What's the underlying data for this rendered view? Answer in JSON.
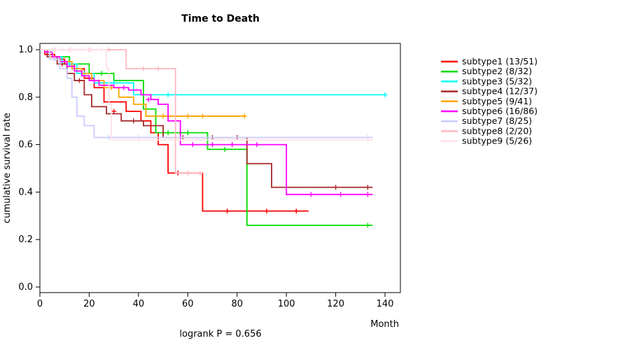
{
  "title": "Time to Death",
  "chart_data": {
    "type": "line",
    "subtype": "kaplan-meier-step",
    "title": "Time to Death",
    "xlabel": "Month",
    "ylabel": "cumulative survival rate",
    "annotation": "logrank P = 0.656",
    "xlim": [
      0,
      146
    ],
    "ylim": [
      0.0,
      1.0
    ],
    "xticks": [
      0,
      20,
      40,
      60,
      80,
      100,
      120,
      140
    ],
    "yticks": [
      0.0,
      0.2,
      0.4,
      0.6,
      0.8,
      1.0
    ],
    "grid": false,
    "legend_position": "right",
    "series": [
      {
        "name": "subtype1 (13/51)",
        "color": "#FF0000",
        "steps": [
          [
            0,
            1.0
          ],
          [
            2,
            0.98
          ],
          [
            6,
            0.96
          ],
          [
            10,
            0.94
          ],
          [
            14,
            0.92
          ],
          [
            18,
            0.88
          ],
          [
            22,
            0.84
          ],
          [
            26,
            0.78
          ],
          [
            35,
            0.74
          ],
          [
            41,
            0.7
          ],
          [
            45,
            0.65
          ],
          [
            48,
            0.6
          ],
          [
            52,
            0.48
          ],
          [
            66,
            0.32
          ]
        ],
        "end": 109,
        "censors": [
          [
            9,
            0.94
          ],
          [
            30,
            0.74
          ],
          [
            56,
            0.48
          ],
          [
            76,
            0.32
          ],
          [
            92,
            0.32
          ],
          [
            104,
            0.32
          ]
        ]
      },
      {
        "name": "subtype2 (8/32)",
        "color": "#00DD00",
        "steps": [
          [
            0,
            1.0
          ],
          [
            5,
            0.97
          ],
          [
            12,
            0.94
          ],
          [
            20,
            0.9
          ],
          [
            30,
            0.87
          ],
          [
            42,
            0.75
          ],
          [
            47,
            0.65
          ],
          [
            68,
            0.58
          ],
          [
            84,
            0.26
          ]
        ],
        "end": 135,
        "censors": [
          [
            25,
            0.9
          ],
          [
            52,
            0.65
          ],
          [
            60,
            0.65
          ],
          [
            75,
            0.58
          ],
          [
            133,
            0.26
          ]
        ]
      },
      {
        "name": "subtype3 (5/32)",
        "color": "#00FFFF",
        "steps": [
          [
            0,
            1.0
          ],
          [
            4,
            0.97
          ],
          [
            9,
            0.94
          ],
          [
            15,
            0.9
          ],
          [
            22,
            0.86
          ],
          [
            38,
            0.81
          ]
        ],
        "end": 140,
        "censors": [
          [
            12,
            0.94
          ],
          [
            18,
            0.9
          ],
          [
            30,
            0.86
          ],
          [
            52,
            0.81
          ],
          [
            140,
            0.81
          ]
        ]
      },
      {
        "name": "subtype4 (12/37)",
        "color": "#A52A2A",
        "steps": [
          [
            0,
            1.0
          ],
          [
            3,
            0.97
          ],
          [
            7,
            0.94
          ],
          [
            11,
            0.9
          ],
          [
            14,
            0.87
          ],
          [
            18,
            0.81
          ],
          [
            21,
            0.76
          ],
          [
            27,
            0.73
          ],
          [
            33,
            0.7
          ],
          [
            42,
            0.68
          ],
          [
            50,
            0.63
          ],
          [
            84,
            0.52
          ],
          [
            94,
            0.42
          ]
        ],
        "end": 135,
        "censors": [
          [
            16,
            0.87
          ],
          [
            38,
            0.7
          ],
          [
            58,
            0.63
          ],
          [
            70,
            0.63
          ],
          [
            80,
            0.63
          ],
          [
            120,
            0.42
          ],
          [
            133,
            0.42
          ]
        ]
      },
      {
        "name": "subtype5 (9/41)",
        "color": "#FFA500",
        "steps": [
          [
            0,
            1.0
          ],
          [
            4,
            0.97
          ],
          [
            8,
            0.95
          ],
          [
            13,
            0.92
          ],
          [
            17,
            0.9
          ],
          [
            21,
            0.87
          ],
          [
            26,
            0.84
          ],
          [
            32,
            0.8
          ],
          [
            38,
            0.77
          ],
          [
            43,
            0.72
          ]
        ],
        "end": 83,
        "censors": [
          [
            29,
            0.84
          ],
          [
            50,
            0.72
          ],
          [
            55,
            0.72
          ],
          [
            60,
            0.72
          ],
          [
            66,
            0.72
          ],
          [
            83,
            0.72
          ]
        ]
      },
      {
        "name": "subtype6 (16/86)",
        "color": "#FF00FF",
        "steps": [
          [
            0,
            1.0
          ],
          [
            2,
            0.99
          ],
          [
            5,
            0.97
          ],
          [
            8,
            0.95
          ],
          [
            11,
            0.93
          ],
          [
            14,
            0.91
          ],
          [
            17,
            0.89
          ],
          [
            20,
            0.87
          ],
          [
            24,
            0.85
          ],
          [
            30,
            0.84
          ],
          [
            36,
            0.83
          ],
          [
            41,
            0.81
          ],
          [
            45,
            0.79
          ],
          [
            48,
            0.77
          ],
          [
            52,
            0.7
          ],
          [
            57,
            0.6
          ],
          [
            100,
            0.39
          ]
        ],
        "end": 135,
        "censors": [
          [
            22,
            0.87
          ],
          [
            34,
            0.84
          ],
          [
            44,
            0.79
          ],
          [
            62,
            0.6
          ],
          [
            70,
            0.6
          ],
          [
            78,
            0.6
          ],
          [
            88,
            0.6
          ],
          [
            110,
            0.39
          ],
          [
            122,
            0.39
          ],
          [
            133,
            0.39
          ]
        ]
      },
      {
        "name": "subtype7 (8/25)",
        "color": "#CCCCFF",
        "steps": [
          [
            0,
            1.0
          ],
          [
            4,
            0.96
          ],
          [
            8,
            0.92
          ],
          [
            11,
            0.88
          ],
          [
            13,
            0.8
          ],
          [
            15,
            0.72
          ],
          [
            18,
            0.68
          ],
          [
            22,
            0.63
          ]
        ],
        "end": 135,
        "censors": [
          [
            6,
            0.96
          ],
          [
            28,
            0.63
          ],
          [
            40,
            0.63
          ],
          [
            133,
            0.63
          ]
        ]
      },
      {
        "name": "subtype8 (2/20)",
        "color": "#FFB6C1",
        "steps": [
          [
            0,
            1.0
          ],
          [
            35,
            0.92
          ],
          [
            55,
            0.48
          ]
        ],
        "end": 66,
        "censors": [
          [
            6,
            1.0
          ],
          [
            12,
            1.0
          ],
          [
            20,
            1.0
          ],
          [
            28,
            1.0
          ],
          [
            42,
            0.92
          ],
          [
            48,
            0.92
          ],
          [
            60,
            0.48
          ],
          [
            65,
            0.48
          ]
        ]
      },
      {
        "name": "subtype9 (5/26)",
        "color": "#FFE1E6",
        "steps": [
          [
            0,
            1.0
          ],
          [
            27,
            0.92
          ],
          [
            28,
            0.77
          ],
          [
            29,
            0.62
          ]
        ],
        "end": 135,
        "censors": [
          [
            5,
            1.0
          ],
          [
            9,
            1.0
          ],
          [
            13,
            1.0
          ],
          [
            17,
            1.0
          ],
          [
            21,
            1.0
          ],
          [
            25,
            1.0
          ],
          [
            40,
            0.62
          ],
          [
            133,
            0.62
          ]
        ]
      }
    ]
  }
}
